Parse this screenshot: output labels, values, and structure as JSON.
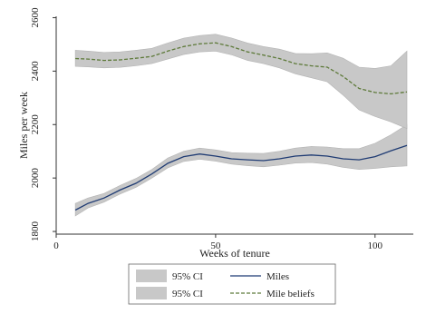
{
  "chart_data": {
    "type": "line",
    "xlabel": "Weeks of tenure",
    "ylabel": "Miles per week",
    "xlim": [
      0,
      112
    ],
    "ylim": [
      1790,
      2605
    ],
    "x_ticks": [
      0,
      50,
      100
    ],
    "y_ticks": [
      1800,
      2000,
      2200,
      2400,
      2600
    ],
    "grid": false,
    "legend_position": "bottom",
    "colors": {
      "miles": "#1f3b73",
      "beliefs": "#5e7a3a",
      "ci_fill": "#c8c8c8",
      "ci_edge": "#b4b4b4"
    },
    "series": [
      {
        "name": "Miles",
        "style": "solid",
        "x": [
          6,
          10,
          15,
          20,
          25,
          30,
          35,
          40,
          45,
          50,
          55,
          60,
          65,
          70,
          75,
          80,
          85,
          90,
          95,
          100,
          105,
          110
        ],
        "values": [
          1880,
          1905,
          1925,
          1955,
          1980,
          2015,
          2055,
          2080,
          2090,
          2082,
          2072,
          2068,
          2065,
          2072,
          2082,
          2086,
          2082,
          2072,
          2068,
          2080,
          2102,
          2122
        ],
        "ci_lower": [
          1858,
          1888,
          1910,
          1940,
          1965,
          2000,
          2038,
          2062,
          2070,
          2063,
          2052,
          2046,
          2042,
          2048,
          2056,
          2058,
          2052,
          2040,
          2032,
          2036,
          2042,
          2045
        ],
        "ci_upper": [
          1905,
          1925,
          1942,
          1972,
          1998,
          2032,
          2075,
          2100,
          2112,
          2105,
          2095,
          2093,
          2092,
          2100,
          2112,
          2118,
          2116,
          2110,
          2110,
          2130,
          2162,
          2200
        ]
      },
      {
        "name": "Mile beliefs",
        "style": "dashed",
        "x": [
          6,
          10,
          15,
          20,
          25,
          30,
          35,
          40,
          45,
          50,
          55,
          60,
          65,
          70,
          75,
          80,
          85,
          90,
          95,
          100,
          105,
          110
        ],
        "values": [
          2447,
          2445,
          2440,
          2442,
          2448,
          2455,
          2475,
          2492,
          2502,
          2506,
          2492,
          2472,
          2460,
          2447,
          2428,
          2420,
          2415,
          2380,
          2335,
          2320,
          2315,
          2322
        ],
        "ci_lower": [
          2418,
          2416,
          2412,
          2414,
          2420,
          2428,
          2445,
          2462,
          2472,
          2475,
          2461,
          2440,
          2428,
          2412,
          2390,
          2375,
          2360,
          2310,
          2255,
          2230,
          2210,
          2185
        ],
        "ci_upper": [
          2478,
          2475,
          2470,
          2472,
          2478,
          2485,
          2505,
          2523,
          2533,
          2538,
          2524,
          2505,
          2492,
          2482,
          2466,
          2465,
          2468,
          2448,
          2415,
          2410,
          2420,
          2475
        ]
      }
    ],
    "legend": [
      {
        "swatch": "band",
        "label": "95% CI"
      },
      {
        "swatch": "line-solid",
        "label": "Miles"
      },
      {
        "swatch": "band",
        "label": "95% CI"
      },
      {
        "swatch": "line-dashed",
        "label": "Mile beliefs"
      }
    ]
  }
}
